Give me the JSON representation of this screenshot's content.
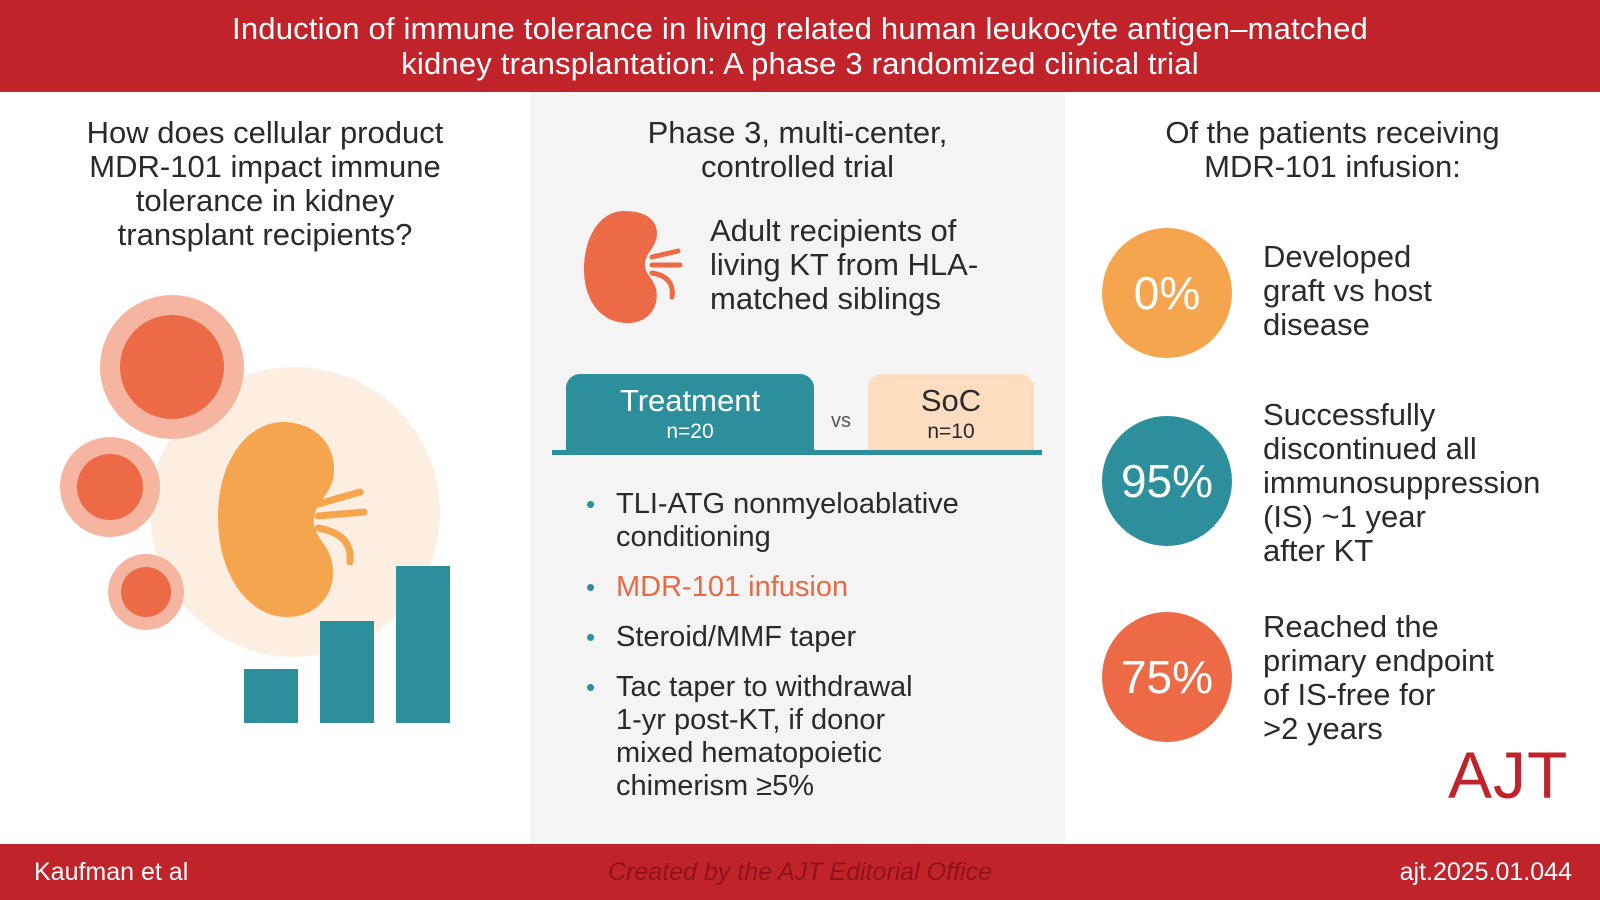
{
  "header": {
    "title_line1": "Induction of immune tolerance in living related human leukocyte antigen–matched",
    "title_line2": "kidney transplantation: A phase 3 randomized clinical trial"
  },
  "left": {
    "question_lines": [
      "How does cellular product",
      "MDR-101 impact immune",
      "tolerance in kidney",
      "transplant recipients?"
    ]
  },
  "middle": {
    "title_lines": [
      "Phase 3, multi-center,",
      "controlled trial"
    ],
    "population_lines": [
      "Adult recipients of",
      "living KT from HLA-",
      "matched siblings"
    ],
    "treatment": {
      "label": "Treatment",
      "n": "n=20"
    },
    "vs": "vs",
    "soc": {
      "label": "SoC",
      "n": "n=10"
    },
    "bullets": [
      {
        "lines": [
          "TLI-ATG nonmyeloablative",
          "conditioning"
        ]
      },
      {
        "lines": [
          "MDR-101 infusion"
        ]
      },
      {
        "lines": [
          "Steroid/MMF taper"
        ]
      },
      {
        "lines": [
          "Tac taper to withdrawal",
          "1-yr post-KT, if donor",
          "mixed hematopoietic",
          "chimerism ≥5%"
        ]
      }
    ]
  },
  "right": {
    "title_lines": [
      "Of the patients receiving",
      "MDR-101 infusion:"
    ],
    "stats": [
      {
        "value": "0%",
        "lines": [
          "Developed",
          "graft vs host",
          "disease"
        ],
        "color": "#f6a54f"
      },
      {
        "value": "95%",
        "lines": [
          "Successfully",
          "discontinued all",
          "immunosuppression",
          "(IS) ~1 year",
          "after KT"
        ],
        "color": "#2e8f9c"
      },
      {
        "value": "75%",
        "lines": [
          "Reached the",
          "primary endpoint",
          "of IS-free for",
          ">2 years"
        ],
        "color": "#ec6a45"
      }
    ],
    "logo": "AJT"
  },
  "footer": {
    "author": "Kaufman et al",
    "credit": "Created by the AJT Editorial Office",
    "doi": "ajt.2025.01.044"
  },
  "colors": {
    "brand_red": "#c1232b",
    "teal": "#2e8f9c",
    "orange": "#ec6a45",
    "light_orange": "#f6a54f",
    "peach": "#fddcc0"
  },
  "icons": [
    "kidney-icon",
    "cells-icon",
    "bar-chart-icon"
  ]
}
